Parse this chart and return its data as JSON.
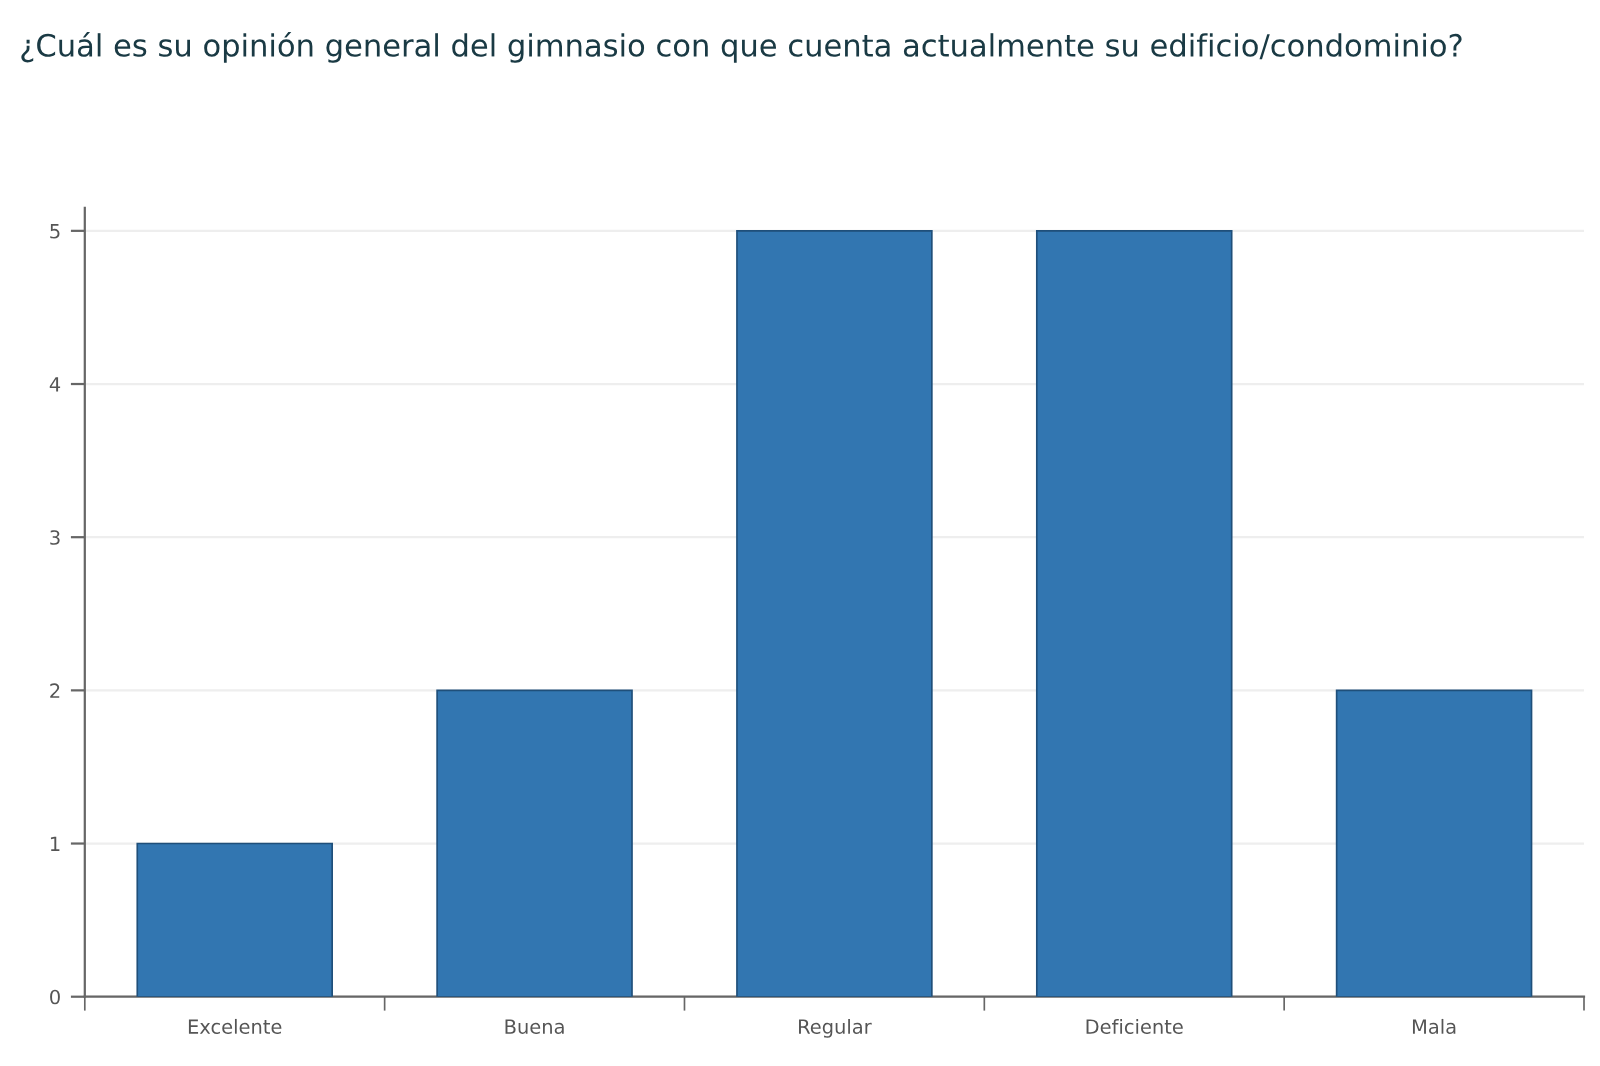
{
  "chart_data": {
    "type": "bar",
    "title": "¿Cuál es su opinión general del gimnasio con que cuenta actualmente su edificio/condominio?",
    "categories": [
      "Excelente",
      "Buena",
      "Regular",
      "Deficiente",
      "Mala"
    ],
    "values": [
      1,
      2,
      5,
      5,
      2
    ],
    "color": "#3276b1",
    "ylim": [
      0,
      5.15
    ],
    "yticks": [
      0,
      1,
      2,
      3,
      4,
      5
    ],
    "grid": "y",
    "legend": false
  }
}
